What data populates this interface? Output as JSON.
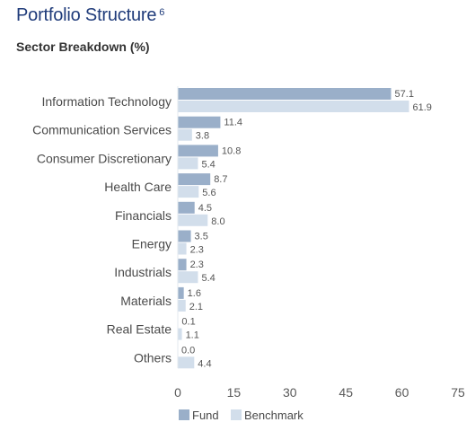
{
  "header": {
    "title": "Portfolio Structure",
    "title_footnote": "6",
    "subtitle": "Sector Breakdown (%)"
  },
  "colors": {
    "fund": "#9aafc9",
    "benchmark": "#d2deeb",
    "title": "#1f3b7a"
  },
  "chart_data": {
    "type": "bar",
    "orientation": "horizontal",
    "categories": [
      "Information Technology",
      "Communication Services",
      "Consumer Discretionary",
      "Health Care",
      "Financials",
      "Energy",
      "Industrials",
      "Materials",
      "Real Estate",
      "Others"
    ],
    "series": [
      {
        "name": "Fund",
        "values": [
          57.1,
          11.4,
          10.8,
          8.7,
          4.5,
          3.5,
          2.3,
          1.6,
          0.1,
          0.0
        ]
      },
      {
        "name": "Benchmark",
        "values": [
          61.9,
          3.8,
          5.4,
          5.6,
          8.0,
          2.3,
          5.4,
          2.1,
          1.1,
          4.4
        ]
      }
    ],
    "value_labels": {
      "Fund": [
        "57.1",
        "11.4",
        "10.8",
        "8.7",
        "4.5",
        "3.5",
        "2.3",
        "1.6",
        "0.1",
        "0.0"
      ],
      "Benchmark": [
        "61.9",
        "3.8",
        "5.4",
        "5.6",
        "8.0",
        "2.3",
        "5.4",
        "2.1",
        "1.1",
        "4.4"
      ]
    },
    "xlim": [
      0,
      75
    ],
    "xticks": [
      "0",
      "15",
      "30",
      "45",
      "60",
      "75"
    ],
    "grid": false,
    "legend_position": "bottom-left",
    "title": "Sector Breakdown (%)"
  }
}
